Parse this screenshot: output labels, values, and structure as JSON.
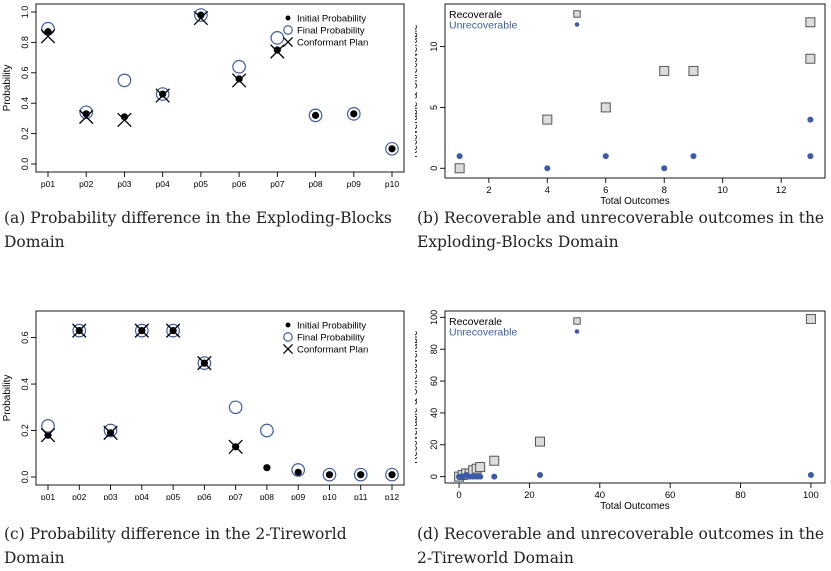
{
  "chart_data": [
    {
      "type": "scatter",
      "ylabel": "Probability",
      "ylim": [
        0,
        1.0
      ],
      "yticks": [
        0.0,
        0.2,
        0.4,
        0.6,
        0.8,
        1.0
      ],
      "ytick_labels": [
        "0.0",
        "0.2",
        "0.4",
        "0.6",
        "0.8",
        "1.0"
      ],
      "categories": [
        "p01",
        "p02",
        "p03",
        "p04",
        "p05",
        "p06",
        "p07",
        "p08",
        "p09",
        "p10"
      ],
      "legend": [
        "Initial Probability",
        "Final Probability",
        "Conformant Plan"
      ],
      "legend_position": "top-right",
      "series": [
        {
          "name": "Initial Probability",
          "marker": "filled-circle",
          "color": "#000000",
          "values": [
            0.87,
            0.33,
            0.31,
            0.46,
            0.98,
            0.56,
            0.75,
            0.32,
            0.33,
            0.1
          ]
        },
        {
          "name": "Final Probability",
          "marker": "open-circle",
          "color": "#3a5bb0",
          "values": [
            0.89,
            0.34,
            0.55,
            0.46,
            0.98,
            0.64,
            0.83,
            0.32,
            0.33,
            0.1
          ]
        },
        {
          "name": "Conformant Plan",
          "marker": "cross",
          "color": "#000000",
          "values": [
            0.84,
            0.31,
            0.29,
            0.45,
            0.96,
            0.55,
            0.74,
            null,
            null,
            null
          ]
        }
      ],
      "caption": "(a) Probability difference in the Exploding-Blocks Domain"
    },
    {
      "type": "scatter",
      "xlabel": "Total Outcomes",
      "ylabel": "Recoverable & Unrecoverable",
      "xlim": [
        0.5,
        13.5
      ],
      "ylim": [
        -0.8,
        13.5
      ],
      "xticks": [
        2,
        4,
        6,
        8,
        10,
        12
      ],
      "xtick_labels": [
        "2",
        "4",
        "6",
        "8",
        "10",
        "12"
      ],
      "yticks": [
        0,
        5,
        10
      ],
      "ytick_labels": [
        "0",
        "5",
        "10"
      ],
      "legend": [
        "Recoverale",
        "Unrecoverable"
      ],
      "legend_position": "top-left",
      "series": [
        {
          "name": "Recoverale",
          "marker": "open-square",
          "color": "#555555",
          "x": [
            1,
            4,
            6,
            8,
            9,
            13,
            13
          ],
          "y": [
            0,
            4,
            5,
            8,
            8,
            9,
            12
          ]
        },
        {
          "name": "Unrecoverable",
          "marker": "filled-circle",
          "color": "#3a5bb0",
          "x": [
            1,
            4,
            6,
            8,
            9,
            13,
            13
          ],
          "y": [
            1,
            0,
            1,
            0,
            1,
            1,
            4
          ]
        }
      ],
      "caption": "(b) Recoverable and unrecoverable outcomes in the Exploding-Blocks Domain"
    },
    {
      "type": "scatter",
      "ylabel": "Probability",
      "ylim": [
        0,
        0.68
      ],
      "yticks": [
        0.0,
        0.2,
        0.4,
        0.6
      ],
      "ytick_labels": [
        "0.0",
        "0.2",
        "0.4",
        "0.6"
      ],
      "categories": [
        "p01",
        "p02",
        "p03",
        "p04",
        "p05",
        "p06",
        "p07",
        "p08",
        "p09",
        "p10",
        "p11",
        "p12"
      ],
      "legend": [
        "Initial Probability",
        "Final Probability",
        "Conformant Plan"
      ],
      "legend_position": "top-right",
      "series": [
        {
          "name": "Initial Probability",
          "marker": "filled-circle",
          "color": "#000000",
          "values": [
            0.18,
            0.63,
            0.19,
            0.63,
            0.63,
            0.49,
            0.13,
            0.04,
            0.02,
            0.01,
            0.01,
            0.01
          ]
        },
        {
          "name": "Final Probability",
          "marker": "open-circle",
          "color": "#3a5bb0",
          "values": [
            0.22,
            0.63,
            0.2,
            0.63,
            0.63,
            0.49,
            0.3,
            0.2,
            0.03,
            0.01,
            0.01,
            0.01
          ]
        },
        {
          "name": "Conformant Plan",
          "marker": "cross",
          "color": "#000000",
          "values": [
            0.18,
            0.63,
            0.19,
            0.63,
            0.63,
            0.49,
            0.13,
            null,
            null,
            null,
            null,
            null
          ]
        }
      ],
      "caption": "(c) Probability difference in the 2-Tireworld Domain"
    },
    {
      "type": "scatter",
      "xlabel": "Total Outcomes",
      "ylabel": "Recoverable & Unrecoverable",
      "xlim": [
        -4,
        104
      ],
      "ylim": [
        -4,
        104
      ],
      "xticks": [
        0,
        20,
        40,
        60,
        80,
        100
      ],
      "xtick_labels": [
        "0",
        "20",
        "40",
        "60",
        "80",
        "100"
      ],
      "yticks": [
        0,
        20,
        40,
        60,
        80,
        100
      ],
      "ytick_labels": [
        "0",
        "20",
        "40",
        "60",
        "80",
        "100"
      ],
      "legend": [
        "Recoverale",
        "Unrecoverable"
      ],
      "legend_position": "top-left",
      "series": [
        {
          "name": "Recoverale",
          "marker": "open-square",
          "color": "#555555",
          "x": [
            0,
            1,
            2,
            3,
            4,
            5,
            6,
            10,
            23,
            100
          ],
          "y": [
            0,
            1,
            2,
            2,
            4,
            5,
            6,
            10,
            22,
            99
          ]
        },
        {
          "name": "Unrecoverable",
          "marker": "filled-circle",
          "color": "#3a5bb0",
          "x": [
            0,
            1,
            2,
            3,
            4,
            5,
            6,
            10,
            23,
            100
          ],
          "y": [
            0,
            0,
            1,
            0,
            0,
            0,
            0,
            0,
            1,
            1
          ]
        }
      ],
      "caption": "(d) Recoverable and unrecoverable outcomes in the 2-Tireworld Domain"
    }
  ]
}
